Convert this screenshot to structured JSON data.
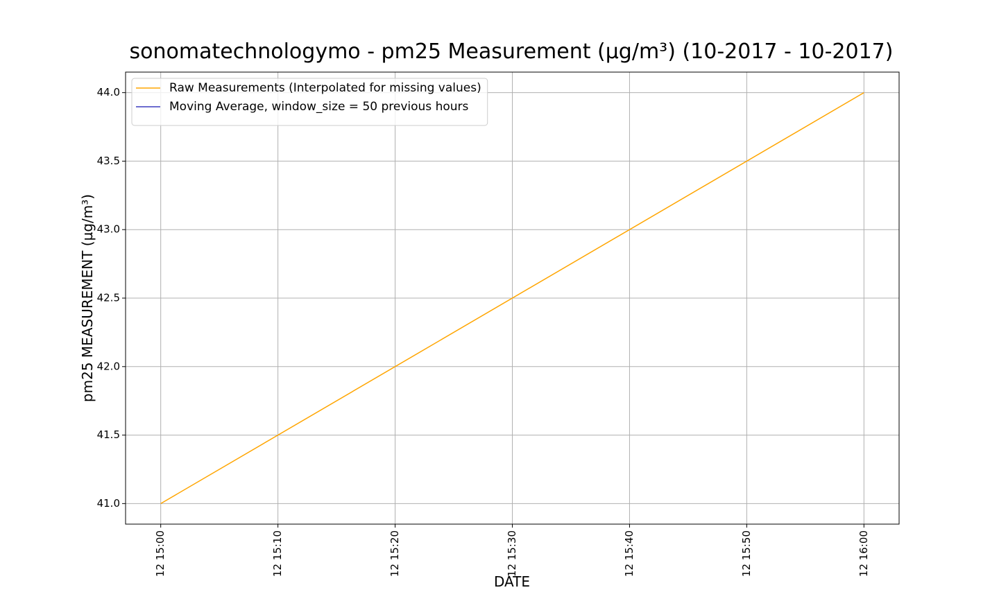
{
  "chart_data": {
    "type": "line",
    "title": "sonomatechnologymo - pm25 Measurement (µg/m³) (10-2017 - 10-2017)",
    "xlabel": "DATE",
    "ylabel": "pm25 MEASUREMENT (µg/m³)",
    "x": [
      "12 15:00",
      "12 16:00"
    ],
    "series": [
      {
        "name": "Raw Measurements (Interpolated for missing values)",
        "color": "#ffa500",
        "values": [
          41,
          44
        ]
      },
      {
        "name": "Moving Average, window_size = 50 previous hours",
        "color": "#3c3cbf",
        "values": [
          null,
          null
        ]
      }
    ],
    "xlim": [
      "12 14:57",
      "12 16:03"
    ],
    "xticks": [
      "12 15:00",
      "12 15:10",
      "12 15:20",
      "12 15:30",
      "12 15:40",
      "12 15:50",
      "12 16:00"
    ],
    "ylim": [
      40.85,
      44.15
    ],
    "yticks": [
      {
        "value": 41,
        "label": "41.0"
      },
      {
        "value": 41.5,
        "label": "41.5"
      },
      {
        "value": 42,
        "label": "42.0"
      },
      {
        "value": 42.5,
        "label": "42.5"
      },
      {
        "value": 43,
        "label": "43.0"
      },
      {
        "value": 43.5,
        "label": "43.5"
      },
      {
        "value": 44,
        "label": "44.0"
      }
    ],
    "grid": true,
    "legend": "upper left"
  }
}
